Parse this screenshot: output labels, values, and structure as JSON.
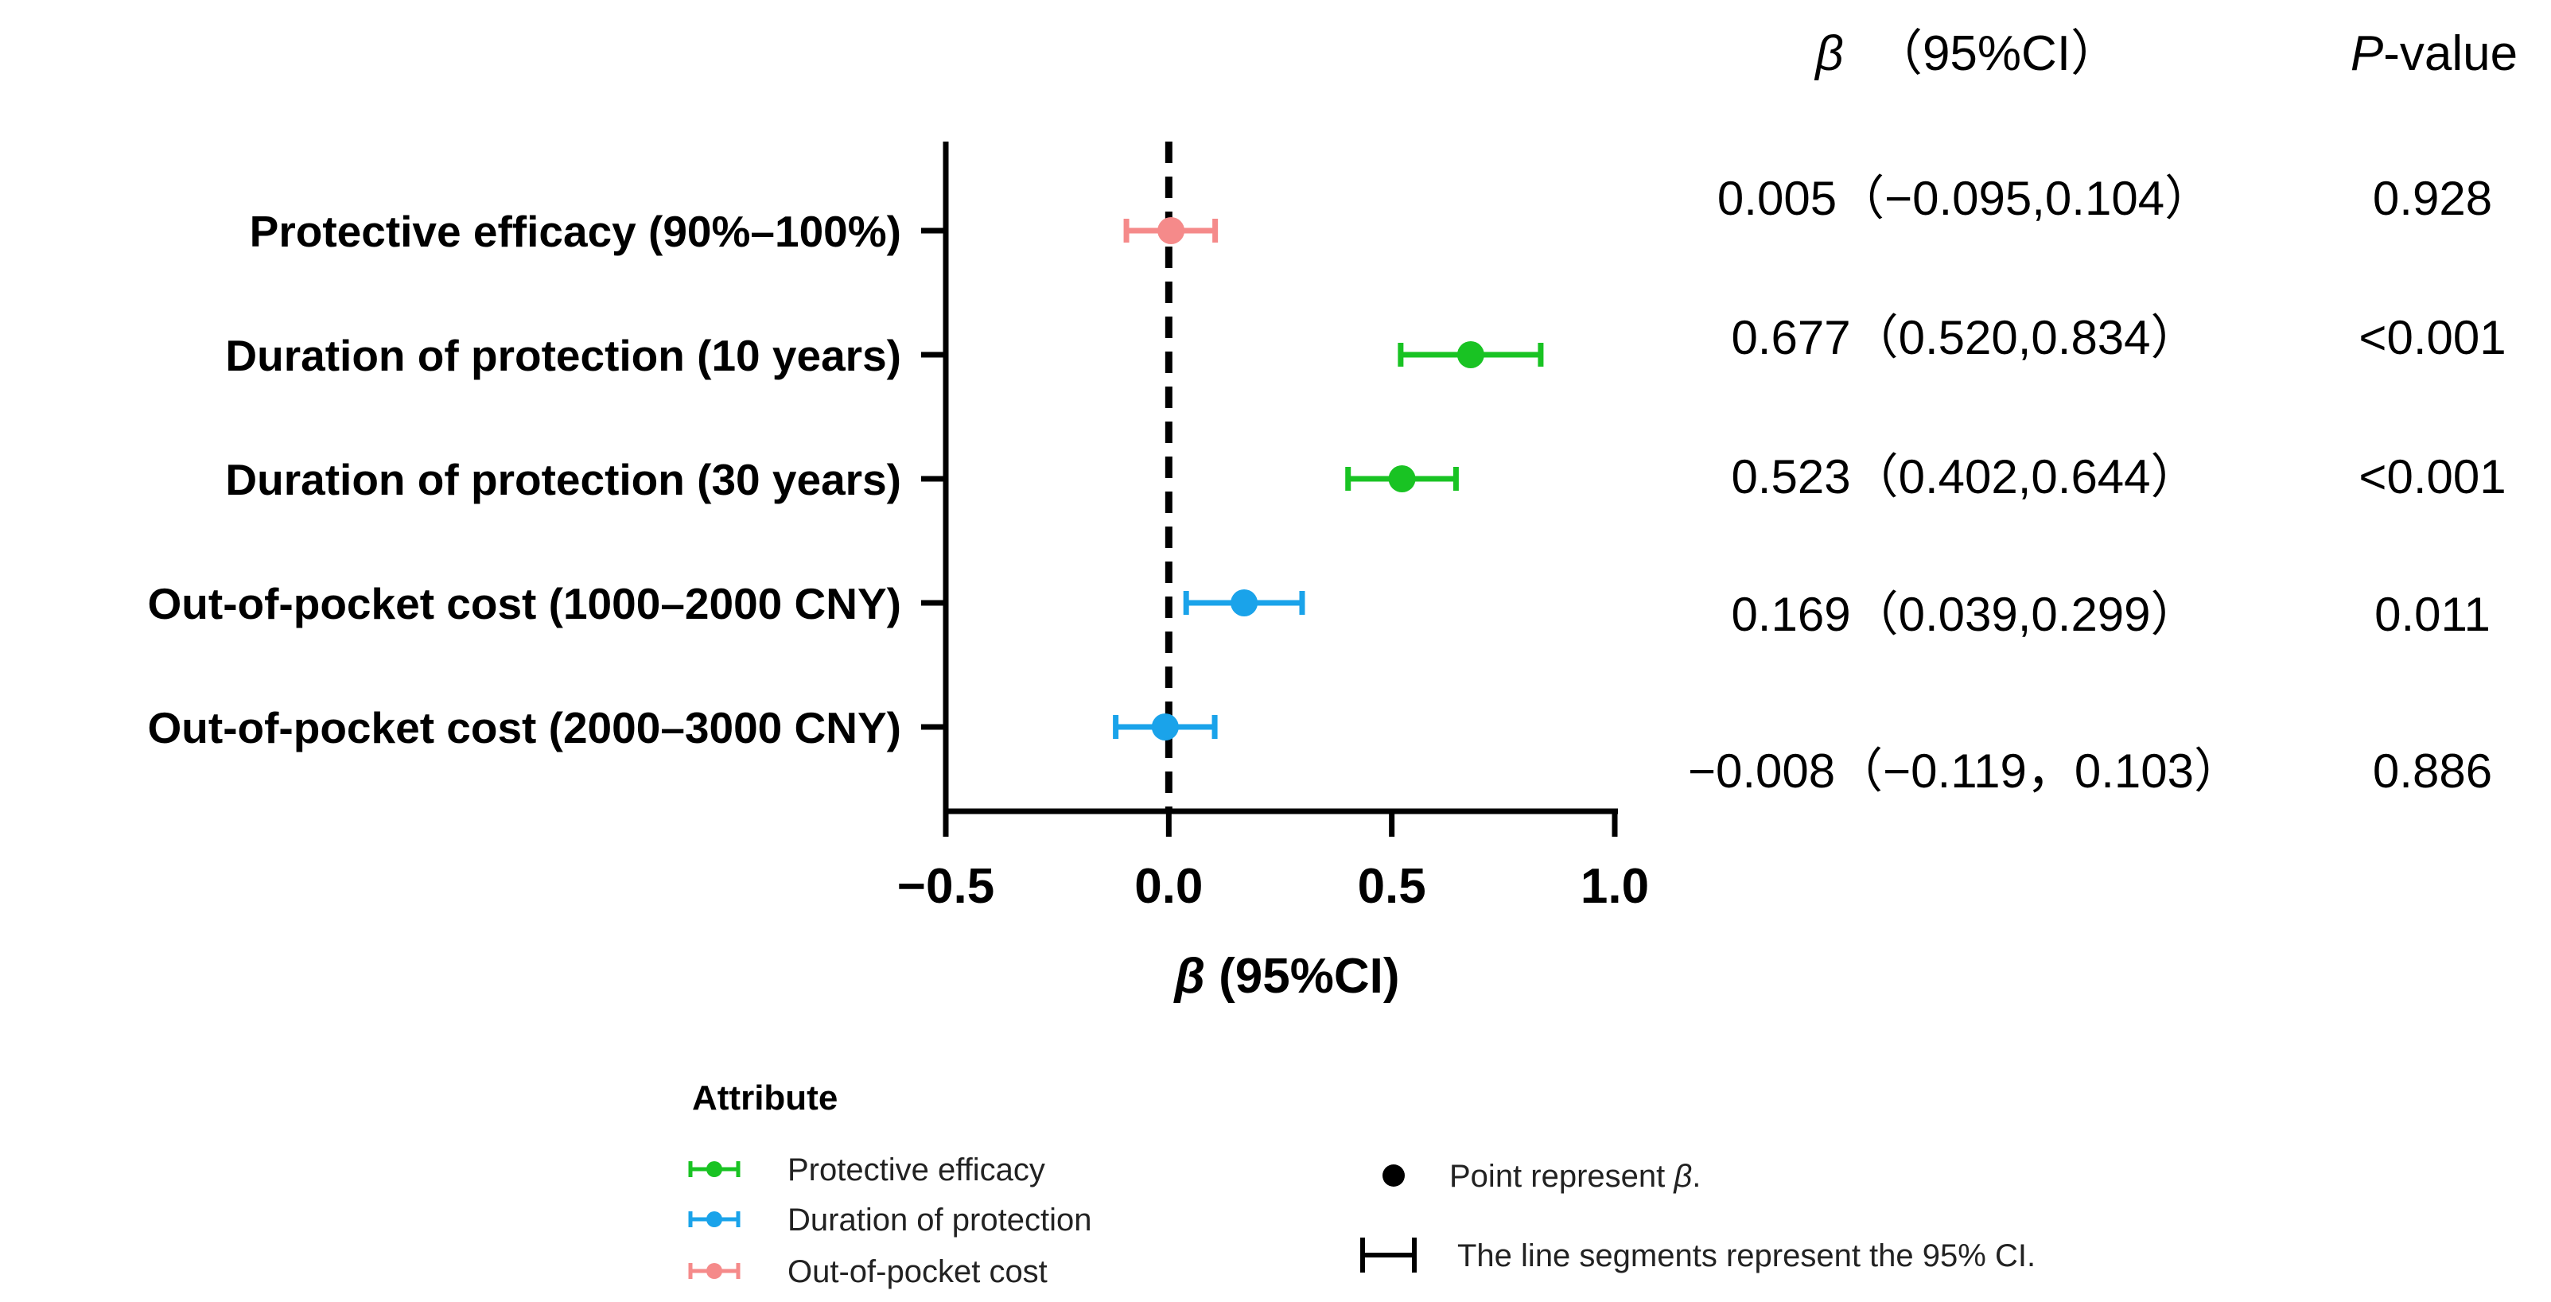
{
  "chart_data": {
    "type": "forest",
    "xlabel_symbol": "β",
    "xlabel_rest": " (95%CI)",
    "xlim": [
      -0.5,
      1.0
    ],
    "xticks": [
      {
        "value": -0.5,
        "label": "−0.5"
      },
      {
        "value": 0.0,
        "label": "0.0"
      },
      {
        "value": 0.5,
        "label": "0.5"
      },
      {
        "value": 1.0,
        "label": "1.0"
      }
    ],
    "reference_line": 0,
    "rows": [
      {
        "label": "Protective efficacy (90%–100%)",
        "group": "Out-of-pocket cost",
        "beta": 0.005,
        "low": -0.095,
        "high": 0.104,
        "ci_text": "0.005（−0.095,0.104）",
        "p_text": "0.928"
      },
      {
        "label": "Duration of protection (10 years)",
        "group": "Protective efficacy",
        "beta": 0.677,
        "low": 0.52,
        "high": 0.834,
        "ci_text": "0.677（0.520,0.834）",
        "p_text": "<0.001"
      },
      {
        "label": "Duration of protection (30 years)",
        "group": "Protective efficacy",
        "beta": 0.523,
        "low": 0.402,
        "high": 0.644,
        "ci_text": "0.523（0.402,0.644）",
        "p_text": "<0.001"
      },
      {
        "label": "Out-of-pocket cost (1000–2000 CNY)",
        "group": "Duration of protection",
        "beta": 0.169,
        "low": 0.039,
        "high": 0.299,
        "ci_text": "0.169（0.039,0.299）",
        "p_text": "0.011"
      },
      {
        "label": "Out-of-pocket cost (2000–3000 CNY)",
        "group": "Duration of protection",
        "beta": -0.008,
        "low": -0.119,
        "high": 0.103,
        "ci_text": "−0.008（−0.119，0.103）",
        "p_text": "0.886"
      }
    ],
    "table_header": {
      "beta_symbol": "β",
      "ci": "（95%CI）",
      "p_symbol": "P",
      "p_rest": "-value"
    },
    "legend": {
      "title": "Attribute",
      "entries": [
        {
          "name": "Protective efficacy",
          "color": "#19c323"
        },
        {
          "name": "Duration of protection",
          "color": "#1aa3ea"
        },
        {
          "name": "Out-of-pocket cost",
          "color": "#f58a8a"
        }
      ],
      "point_note_prefix": "Point represent ",
      "point_note_symbol": "β",
      "point_note_suffix": ".",
      "segment_note": "The line segments represent the 95% CI."
    }
  }
}
